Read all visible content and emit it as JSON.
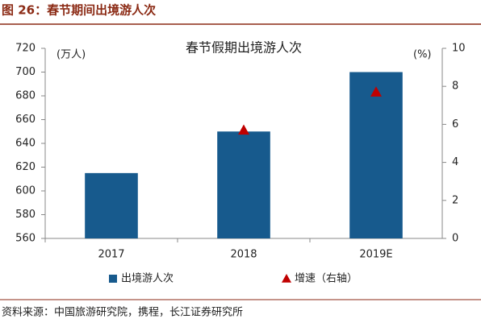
{
  "figure_title": "图 26：春节期间出境游人次",
  "source": "资料来源：中国旅游研究院，携程，长江证券研究所",
  "chart_data": {
    "type": "bar",
    "title": "春节假期出境游人次",
    "ylabel": "(万人)",
    "y2label": "(%)",
    "categories": [
      "2017",
      "2018",
      "2019E"
    ],
    "series": [
      {
        "name": "出境游人次",
        "color": "#175a8d",
        "values": [
          615,
          650,
          700
        ]
      },
      {
        "name": "增速（右轴）",
        "color": "#c00000",
        "values": [
          null,
          5.7,
          7.7
        ],
        "axis": "y2",
        "marker": "triangle"
      }
    ],
    "ylim": [
      560,
      720
    ],
    "yticks": [
      560,
      580,
      600,
      620,
      640,
      660,
      680,
      700,
      720
    ],
    "y2lim": [
      0,
      10
    ],
    "y2ticks": [
      0,
      2,
      4,
      6,
      8,
      10
    ],
    "legend": "bottom"
  }
}
